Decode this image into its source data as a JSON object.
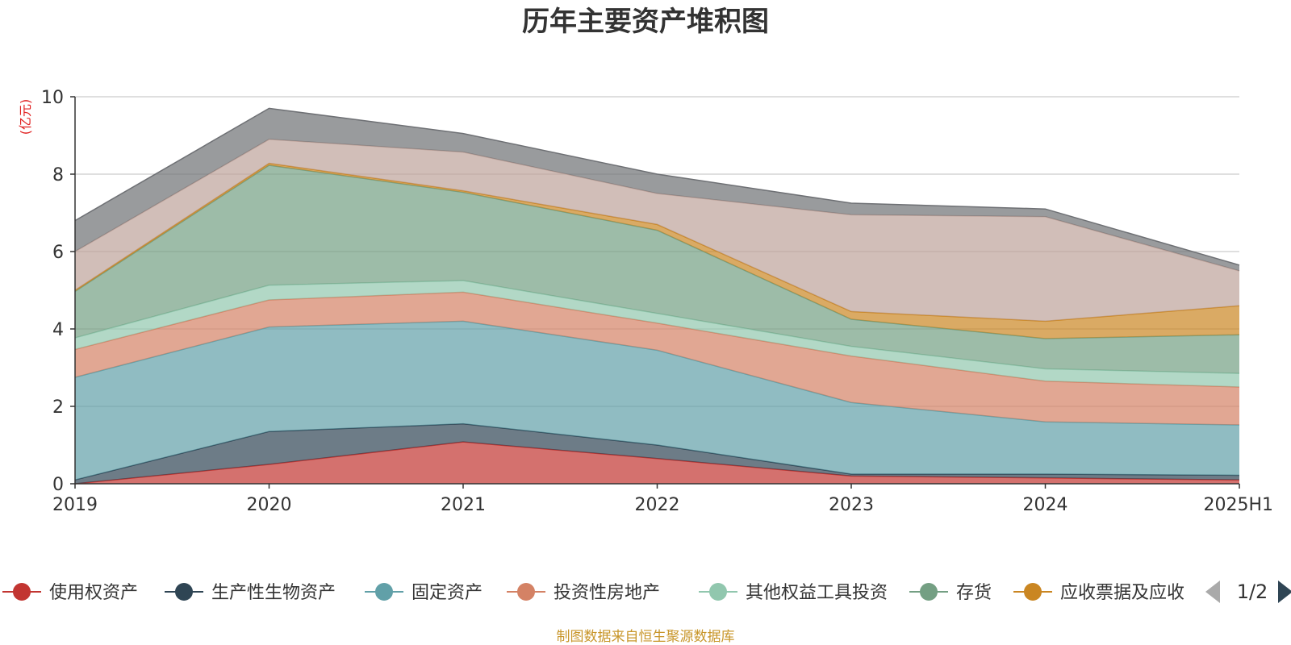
{
  "chart_data": {
    "type": "area",
    "stacked": true,
    "title": "历年主要资产堆积图",
    "unit_label": "(亿元)",
    "categories": [
      "2019",
      "2020",
      "2021",
      "2022",
      "2023",
      "2024",
      "2025H1"
    ],
    "ylim": [
      0,
      10
    ],
    "yticks": [
      0,
      2,
      4,
      6,
      8,
      10
    ],
    "grid": true,
    "legend_position": "bottom",
    "series": [
      {
        "name": "使用权资产",
        "color": "#c23531",
        "values": [
          0.0,
          0.5,
          1.08,
          0.65,
          0.2,
          0.15,
          0.1
        ]
      },
      {
        "name": "生产性生物资产",
        "color": "#2f4554",
        "values": [
          0.1,
          0.85,
          0.47,
          0.35,
          0.05,
          0.1,
          0.12
        ]
      },
      {
        "name": "固定资产",
        "color": "#61a0a8",
        "values": [
          2.65,
          2.7,
          2.65,
          2.45,
          1.85,
          1.35,
          1.3
        ]
      },
      {
        "name": "投资性房地产",
        "color": "#d48265",
        "values": [
          0.72,
          0.7,
          0.75,
          0.7,
          1.2,
          1.05,
          0.98
        ]
      },
      {
        "name": "其他权益工具投资",
        "color": "#91c7ae",
        "values": [
          0.3,
          0.38,
          0.3,
          0.25,
          0.25,
          0.32,
          0.35
        ]
      },
      {
        "name": "存货",
        "color": "#749f83",
        "values": [
          1.2,
          3.1,
          2.28,
          2.15,
          0.7,
          0.78,
          1.0
        ]
      },
      {
        "name": "应收票据及应收",
        "color": "#ca8622",
        "values": [
          0.03,
          0.05,
          0.04,
          0.15,
          0.2,
          0.45,
          0.75
        ]
      },
      {
        "name": "",
        "color": "#bda29a",
        "values": [
          1.0,
          0.62,
          1.0,
          0.8,
          2.5,
          2.7,
          0.9
        ]
      },
      {
        "name": "",
        "color": "#6e7074",
        "values": [
          0.8,
          0.8,
          0.48,
          0.5,
          0.3,
          0.2,
          0.15
        ]
      }
    ],
    "legend_visible_count": 7
  },
  "legend_pager": {
    "text": "1/2"
  },
  "source_text": "制图数据来自恒生聚源数据库"
}
